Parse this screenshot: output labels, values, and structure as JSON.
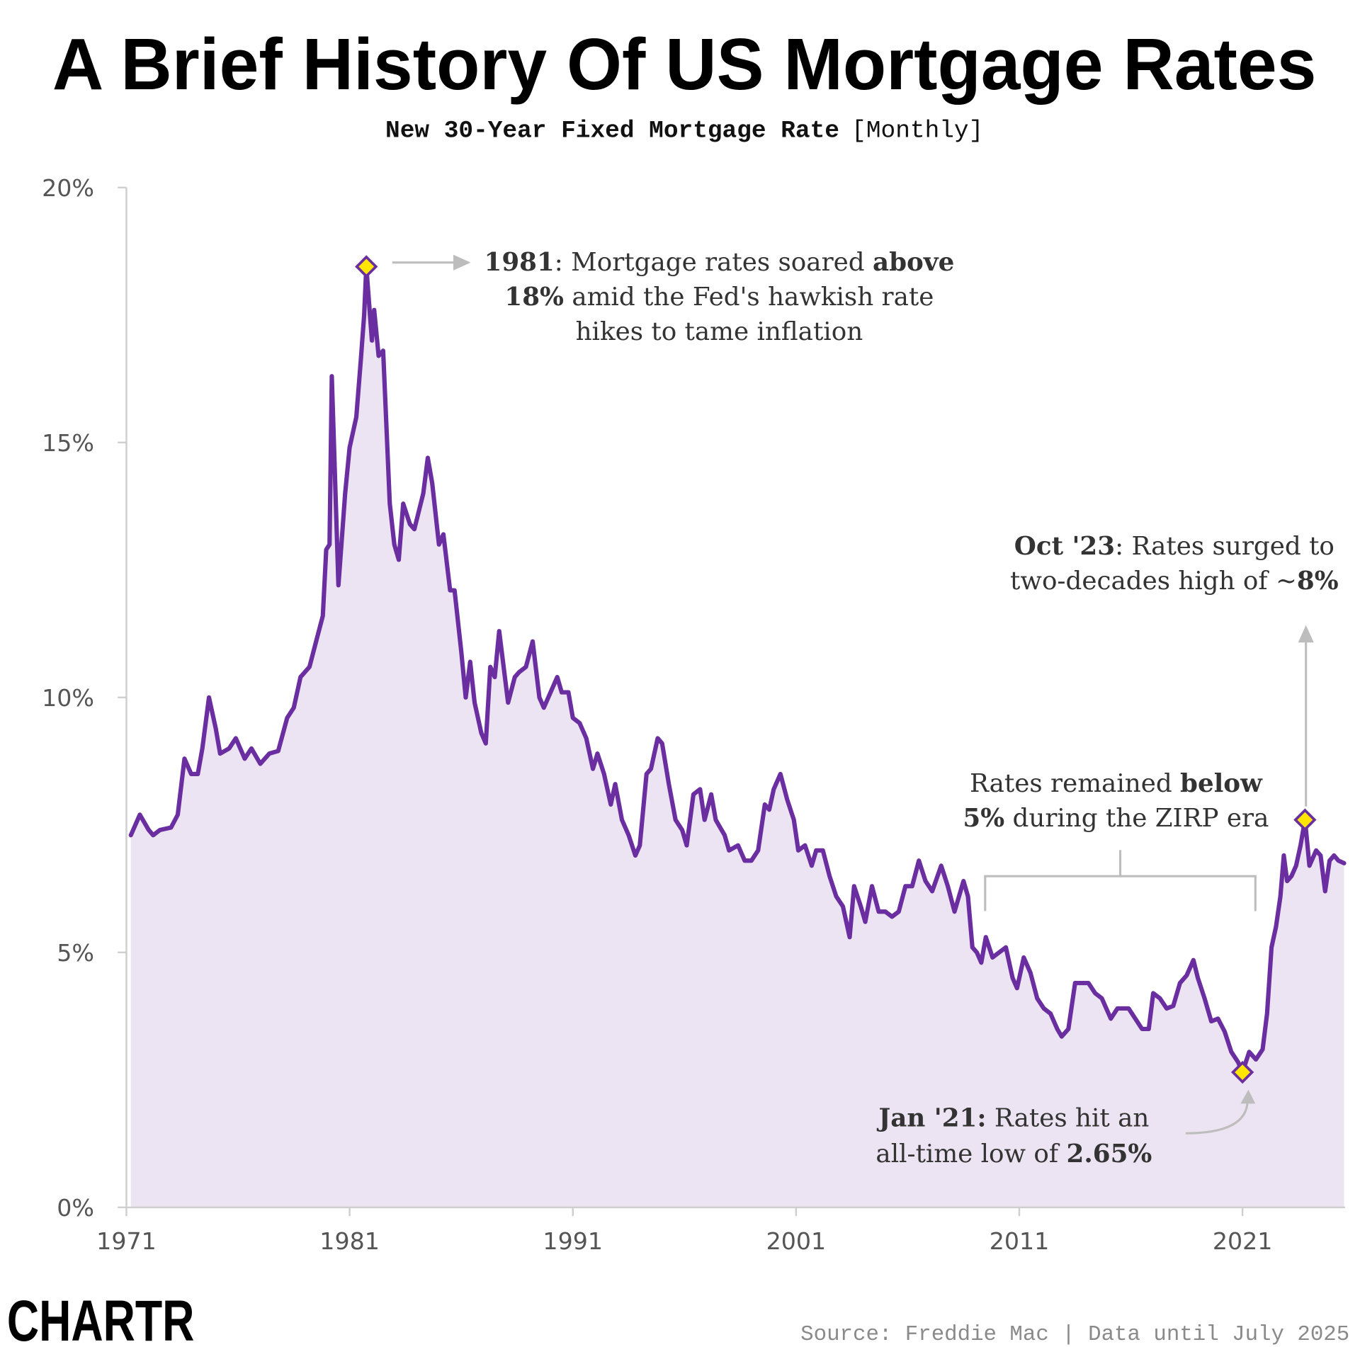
{
  "chart_data": {
    "type": "line",
    "title": "A Brief History Of US Mortgage Rates",
    "subtitle": "New 30-Year Fixed Mortgage Rate",
    "subtitle_note": "[Monthly]",
    "source": "Source: Freddie Mac | Data until July 2025",
    "logo": "CHARTR",
    "color": "#6a2ea0",
    "fill_color": "#ece4f2",
    "xlim": [
      1971,
      2025.6
    ],
    "xticks": [
      1971,
      1981,
      1991,
      2001,
      2011,
      2021
    ],
    "ylim": [
      0,
      20
    ],
    "yticks": [
      {
        "value": 0,
        "label": "0%"
      },
      {
        "value": 5,
        "label": "5%"
      },
      {
        "value": 10,
        "label": "10%"
      },
      {
        "value": 15,
        "label": "15%"
      },
      {
        "value": 20,
        "label": "20%"
      }
    ],
    "x": [
      1971.2,
      1971.6,
      1972.0,
      1972.2,
      1972.5,
      1973.0,
      1973.3,
      1973.6,
      1973.9,
      1974.2,
      1974.4,
      1974.7,
      1975.0,
      1975.2,
      1975.6,
      1975.9,
      1976.3,
      1976.6,
      1977.0,
      1977.4,
      1977.8,
      1978.2,
      1978.5,
      1978.8,
      1979.2,
      1979.5,
      1979.8,
      1979.95,
      1980.1,
      1980.2,
      1980.5,
      1980.8,
      1981.0,
      1981.3,
      1981.5,
      1981.65,
      1981.75,
      1982.0,
      1982.1,
      1982.3,
      1982.5,
      1982.8,
      1983.0,
      1983.2,
      1983.4,
      1983.7,
      1983.9,
      1984.3,
      1984.5,
      1984.7,
      1985.0,
      1985.2,
      1985.5,
      1985.7,
      1986.0,
      1986.2,
      1986.4,
      1986.6,
      1986.9,
      1987.1,
      1987.3,
      1987.5,
      1987.7,
      1987.9,
      1988.1,
      1988.4,
      1988.6,
      1988.9,
      1989.2,
      1989.5,
      1989.7,
      1990.0,
      1990.3,
      1990.5,
      1990.8,
      1991.0,
      1991.3,
      1991.6,
      1991.9,
      1992.1,
      1992.4,
      1992.7,
      1992.9,
      1993.2,
      1993.5,
      1993.8,
      1994.0,
      1994.3,
      1994.5,
      1994.8,
      1995.0,
      1995.3,
      1995.6,
      1995.9,
      1996.1,
      1996.4,
      1996.7,
      1996.9,
      1997.2,
      1997.4,
      1997.8,
      1998.0,
      1998.4,
      1998.7,
      1999.0,
      1999.3,
      1999.6,
      1999.8,
      2000.0,
      2000.3,
      2000.6,
      2000.9,
      2001.1,
      2001.4,
      2001.7,
      2001.9,
      2002.2,
      2002.5,
      2002.8,
      2003.1,
      2003.4,
      2003.6,
      2003.9,
      2004.1,
      2004.4,
      2004.7,
      2005.0,
      2005.3,
      2005.6,
      2005.9,
      2006.2,
      2006.5,
      2006.8,
      2007.1,
      2007.5,
      2007.8,
      2008.1,
      2008.5,
      2008.7,
      2008.9,
      2009.1,
      2009.3,
      2009.5,
      2009.8,
      2010.1,
      2010.4,
      2010.7,
      2010.9,
      2011.2,
      2011.5,
      2011.8,
      2012.1,
      2012.4,
      2012.7,
      2012.9,
      2013.2,
      2013.5,
      2013.8,
      2014.1,
      2014.4,
      2014.7,
      2014.9,
      2015.1,
      2015.4,
      2015.7,
      2015.9,
      2016.2,
      2016.5,
      2016.8,
      2017.0,
      2017.3,
      2017.6,
      2017.9,
      2018.2,
      2018.5,
      2018.8,
      2019.0,
      2019.3,
      2019.6,
      2019.9,
      2020.2,
      2020.5,
      2020.8,
      2021.0,
      2021.3,
      2021.6,
      2021.9,
      2022.1,
      2022.3,
      2022.5,
      2022.7,
      2022.85,
      2023.0,
      2023.2,
      2023.4,
      2023.6,
      2023.8,
      2024.0,
      2024.3,
      2024.5,
      2024.7,
      2024.9,
      2025.1,
      2025.3,
      2025.55
    ],
    "values": [
      7.3,
      7.7,
      7.4,
      7.3,
      7.4,
      7.45,
      7.7,
      8.8,
      8.5,
      8.5,
      9.0,
      10.0,
      9.4,
      8.9,
      9.0,
      9.2,
      8.8,
      9.0,
      8.7,
      8.9,
      8.95,
      9.6,
      9.8,
      10.4,
      10.6,
      11.1,
      11.6,
      12.9,
      13.0,
      16.3,
      12.2,
      14.0,
      14.9,
      15.5,
      16.6,
      17.5,
      18.45,
      17.0,
      17.6,
      16.7,
      16.8,
      13.8,
      13.0,
      12.7,
      13.8,
      13.4,
      13.3,
      14.0,
      14.7,
      14.2,
      13.0,
      13.2,
      12.1,
      12.1,
      10.9,
      10.0,
      10.7,
      9.9,
      9.3,
      9.1,
      10.6,
      10.4,
      11.3,
      10.6,
      9.9,
      10.4,
      10.5,
      10.6,
      11.1,
      10.0,
      9.8,
      10.1,
      10.4,
      10.1,
      10.1,
      9.6,
      9.5,
      9.2,
      8.6,
      8.9,
      8.5,
      7.9,
      8.3,
      7.6,
      7.3,
      6.9,
      7.1,
      8.5,
      8.6,
      9.2,
      9.1,
      8.3,
      7.6,
      7.4,
      7.1,
      8.1,
      8.2,
      7.6,
      8.1,
      7.6,
      7.3,
      7.0,
      7.1,
      6.8,
      6.8,
      7.0,
      7.9,
      7.8,
      8.2,
      8.5,
      8.0,
      7.6,
      7.0,
      7.1,
      6.7,
      7.0,
      7.0,
      6.5,
      6.1,
      5.9,
      5.3,
      6.3,
      5.9,
      5.6,
      6.3,
      5.8,
      5.8,
      5.7,
      5.8,
      6.3,
      6.3,
      6.8,
      6.4,
      6.2,
      6.7,
      6.3,
      5.8,
      6.4,
      6.1,
      5.1,
      5.0,
      4.8,
      5.3,
      4.9,
      5.0,
      5.1,
      4.5,
      4.3,
      4.9,
      4.6,
      4.1,
      3.9,
      3.8,
      3.5,
      3.35,
      3.5,
      4.4,
      4.4,
      4.4,
      4.2,
      4.1,
      3.9,
      3.7,
      3.9,
      3.9,
      3.9,
      3.7,
      3.5,
      3.5,
      4.2,
      4.1,
      3.9,
      3.95,
      4.4,
      4.55,
      4.85,
      4.5,
      4.1,
      3.65,
      3.7,
      3.45,
      3.05,
      2.85,
      2.65,
      3.05,
      2.9,
      3.1,
      3.8,
      5.1,
      5.5,
      6.1,
      6.9,
      6.4,
      6.5,
      6.7,
      7.1,
      7.6,
      6.7,
      7.0,
      6.9,
      6.2,
      6.8,
      6.9,
      6.8,
      6.75
    ],
    "markers": [
      {
        "x": 1981.75,
        "y": 18.45
      },
      {
        "x": 2021.0,
        "y": 2.65
      },
      {
        "x": 2023.8,
        "y": 7.6
      }
    ],
    "annotations": [
      {
        "lines": [
          [
            {
              "text": "1981",
              "bold": true
            },
            {
              "text": ": Mortgage rates soared "
            },
            {
              "text": "above",
              "bold": true
            }
          ],
          [
            {
              "text": "18%",
              "bold": true
            },
            {
              "text": " amid the Fed's hawkish rate"
            }
          ],
          [
            {
              "text": "hikes to tame inflation"
            }
          ]
        ]
      },
      {
        "lines": [
          [
            {
              "text": "Oct '23",
              "bold": true
            },
            {
              "text": ": Rates surged to"
            }
          ],
          [
            {
              "text": "two-decades high of ~"
            },
            {
              "text": "8%",
              "bold": true
            }
          ]
        ]
      },
      {
        "lines": [
          [
            {
              "text": "Rates remained "
            },
            {
              "text": "below",
              "bold": true
            }
          ],
          [
            {
              "text": "5%",
              "bold": true
            },
            {
              "text": " during the ZIRP era"
            }
          ]
        ]
      },
      {
        "lines": [
          [
            {
              "text": "Jan '21:",
              "bold": true
            },
            {
              "text": " Rates hit an"
            }
          ],
          [
            {
              "text": "all-time low of "
            },
            {
              "text": "2.65%",
              "bold": true
            }
          ]
        ]
      }
    ]
  }
}
